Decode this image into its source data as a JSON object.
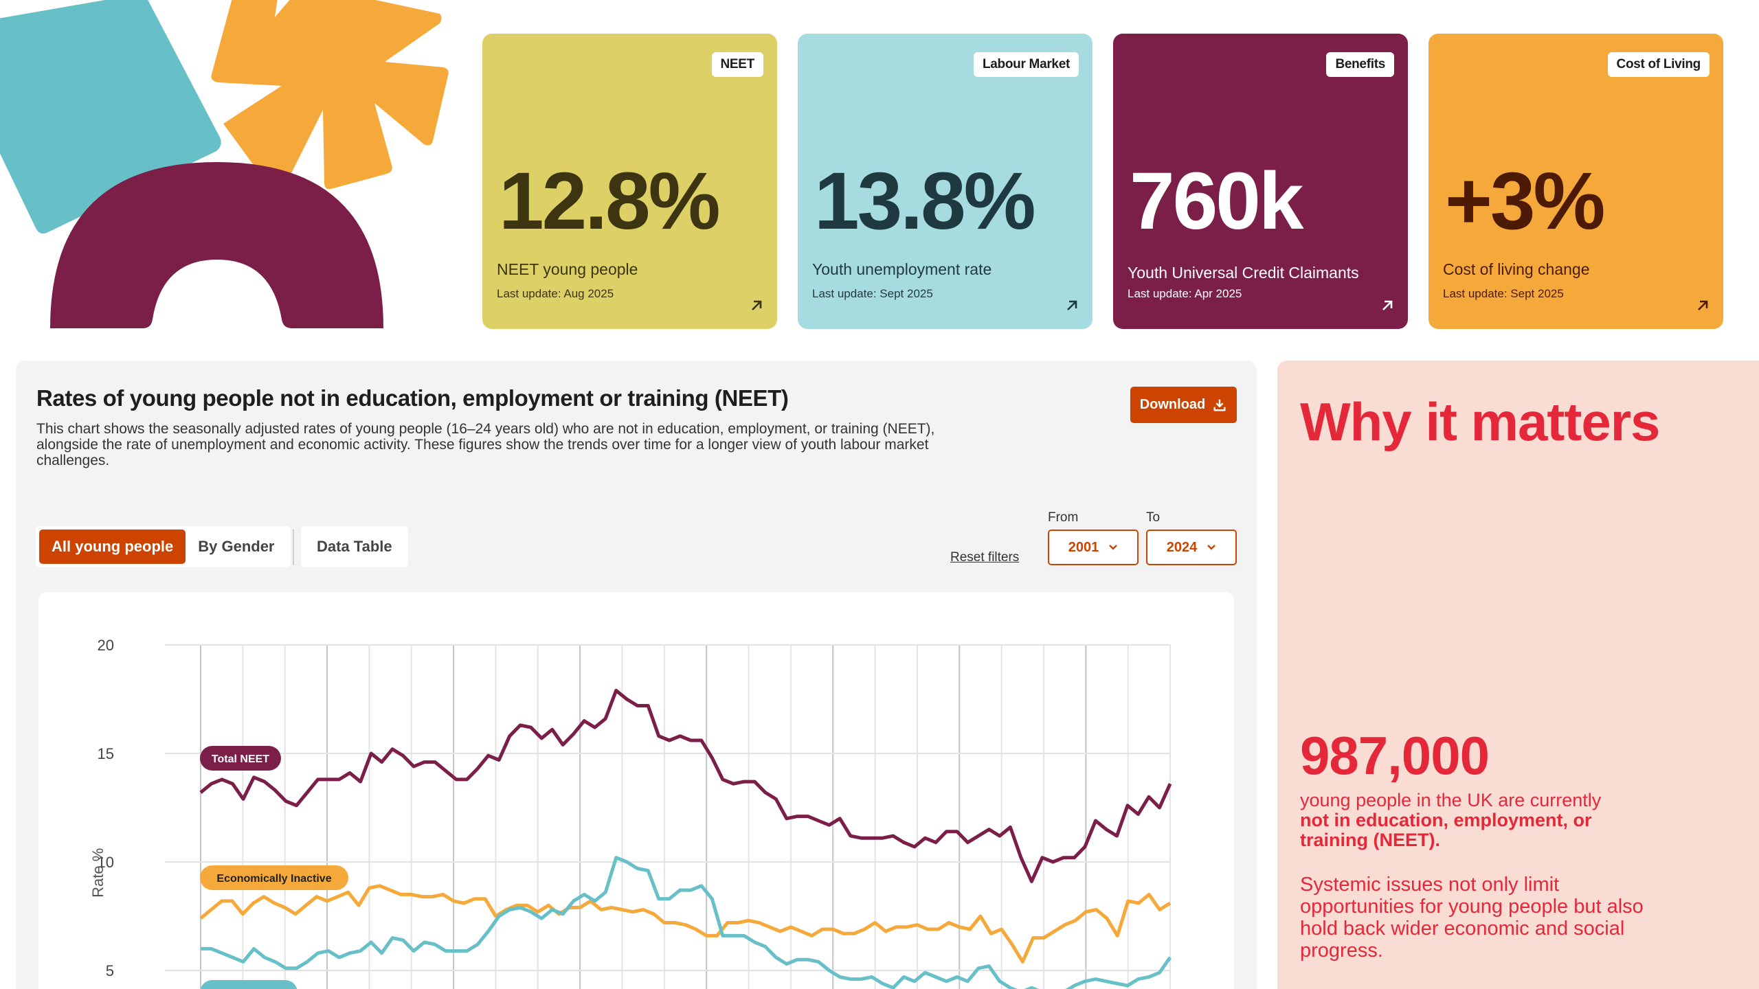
{
  "colors": {
    "teal": "#67c0c8",
    "orange": "#f6a93b",
    "plum": "#7b1f48",
    "accent": "#cc4400",
    "why_bg": "#f9ddd4",
    "why_text": "#e4283a"
  },
  "stat_cards": [
    {
      "badge": "NEET",
      "value": "12.8%",
      "label": "NEET young people",
      "updated": "Last update: Aug 2025",
      "bg": "#dcd066",
      "fg": "#3d3512",
      "icon": "arrow-up-right-icon"
    },
    {
      "badge": "Labour Market",
      "value": "13.8%",
      "label": "Youth unemployment rate",
      "updated": "Last update: Sept 2025",
      "bg": "#a6dbe0",
      "fg": "#1e3a40",
      "icon": "arrow-up-right-icon"
    },
    {
      "badge": "Benefits",
      "value": "760k",
      "label": "Youth Universal Credit Claimants",
      "updated": "Last update: Apr 2025",
      "bg": "#7b1f48",
      "fg": "#ffffff",
      "icon": "arrow-up-right-icon"
    },
    {
      "badge": "Cost of Living",
      "value": "+3%",
      "label": "Cost of living change",
      "updated": "Last update: Sept 2025",
      "bg": "#f6a93b",
      "fg": "#4d1a05",
      "icon": "arrow-up-right-icon"
    }
  ],
  "chart_section": {
    "title": "Rates of young people not in education, employment or training (NEET)",
    "description": "This chart shows the seasonally adjusted rates of young people (16–24 years old) who are not in education, employment, or training (NEET), alongside the rate of unemployment and economic activity. These figures show the trends over time for a longer view of youth labour market challenges.",
    "download_label": "Download",
    "tabs": [
      {
        "label": "All young people",
        "active": true
      },
      {
        "label": "By Gender",
        "active": false
      }
    ],
    "data_table_tab": "Data Table",
    "reset_label": "Reset filters",
    "from_label": "From",
    "from_value": "2001",
    "to_label": "To",
    "to_value": "2024"
  },
  "chart_data": {
    "type": "line",
    "title": "Rates of young people not in education, employment or training (NEET)",
    "xlabel": "",
    "ylabel": "Rate %",
    "x_range": [
      2001,
      2024
    ],
    "x_interval": "quarterly",
    "ylim": [
      0,
      20
    ],
    "yticks": [
      5,
      10,
      15,
      20
    ],
    "grid": true,
    "legend_position": "inline-left",
    "series": [
      {
        "name": "Total NEET",
        "color": "#7b1f48",
        "values": [
          13.2,
          13.6,
          13.8,
          13.6,
          12.9,
          13.9,
          13.7,
          13.3,
          12.8,
          12.6,
          13.2,
          13.8,
          13.8,
          13.8,
          14.1,
          13.7,
          15.0,
          14.6,
          15.2,
          14.9,
          14.4,
          14.6,
          14.6,
          14.2,
          13.8,
          13.8,
          14.3,
          14.9,
          14.7,
          15.8,
          16.3,
          16.2,
          15.7,
          16.1,
          15.4,
          15.9,
          16.5,
          16.2,
          16.6,
          17.9,
          17.5,
          17.2,
          17.2,
          15.8,
          15.6,
          15.8,
          15.6,
          15.6,
          14.8,
          13.8,
          13.6,
          13.7,
          13.7,
          13.2,
          12.9,
          12.0,
          12.1,
          12.1,
          11.9,
          11.7,
          12.0,
          11.2,
          11.1,
          11.1,
          11.1,
          11.2,
          10.9,
          10.7,
          11.1,
          10.9,
          11.4,
          11.4,
          10.9,
          11.2,
          11.5,
          11.2,
          11.6,
          10.2,
          9.1,
          10.2,
          10.0,
          10.2,
          10.2,
          10.7,
          11.9,
          11.5,
          11.2,
          12.6,
          12.2,
          13.0,
          12.5,
          13.6
        ]
      },
      {
        "name": "Economically Inactive",
        "color": "#f6a93b",
        "values": [
          7.4,
          7.8,
          8.2,
          8.2,
          7.6,
          8.1,
          8.4,
          8.1,
          7.9,
          7.6,
          8.0,
          8.4,
          8.2,
          8.4,
          8.6,
          8.0,
          8.8,
          8.9,
          8.7,
          8.5,
          8.5,
          8.4,
          8.4,
          8.5,
          8.2,
          8.1,
          8.3,
          8.3,
          7.5,
          7.8,
          8.0,
          8.0,
          7.7,
          8.0,
          7.6,
          7.9,
          7.9,
          8.2,
          7.8,
          7.9,
          7.8,
          7.7,
          7.8,
          7.6,
          7.2,
          7.2,
          7.1,
          6.9,
          6.6,
          6.6,
          7.2,
          7.2,
          7.3,
          7.2,
          7.0,
          6.8,
          7.0,
          6.8,
          6.6,
          6.9,
          6.9,
          6.7,
          6.7,
          6.9,
          7.2,
          6.8,
          7.0,
          7.0,
          7.1,
          6.9,
          6.9,
          7.2,
          7.0,
          6.9,
          7.5,
          6.7,
          6.9,
          6.2,
          5.4,
          6.5,
          6.5,
          6.8,
          7.1,
          7.3,
          7.7,
          7.8,
          7.4,
          6.6,
          8.2,
          8.1,
          8.5,
          7.8,
          8.1
        ]
      },
      {
        "name": "",
        "color": "#67c0c8",
        "values": [
          6.0,
          6.0,
          5.8,
          5.6,
          5.4,
          6.0,
          5.6,
          5.4,
          5.1,
          5.1,
          5.4,
          5.8,
          5.9,
          5.6,
          5.8,
          5.9,
          6.3,
          5.8,
          6.5,
          6.4,
          5.9,
          6.3,
          6.2,
          5.9,
          5.9,
          5.9,
          6.2,
          6.8,
          7.5,
          7.8,
          7.9,
          7.7,
          7.4,
          7.8,
          7.6,
          8.2,
          8.5,
          8.2,
          8.6,
          10.2,
          10.0,
          9.7,
          9.6,
          8.3,
          8.3,
          8.7,
          8.7,
          8.9,
          8.3,
          6.6,
          6.6,
          6.6,
          6.3,
          6.1,
          5.6,
          5.3,
          5.5,
          5.5,
          5.4,
          5.0,
          4.7,
          4.6,
          4.6,
          4.7,
          4.4,
          4.2,
          4.7,
          4.5,
          4.9,
          4.7,
          4.5,
          4.7,
          4.5,
          5.1,
          5.2,
          4.5,
          4.2,
          4.0,
          4.2,
          4.0,
          4.0,
          4.0,
          4.3,
          4.5,
          4.6,
          4.5,
          4.4,
          4.3,
          4.6,
          4.7,
          4.9,
          5.6
        ]
      }
    ]
  },
  "why_it_matters": {
    "title": "Why it matters",
    "stat": "987,000",
    "text_plain": "young people in the UK are currently",
    "text_bold": "not in education, employment, or training (NEET).",
    "text2": "Systemic issues not only limit opportunities for young people but also hold back wider economic and social progress."
  }
}
